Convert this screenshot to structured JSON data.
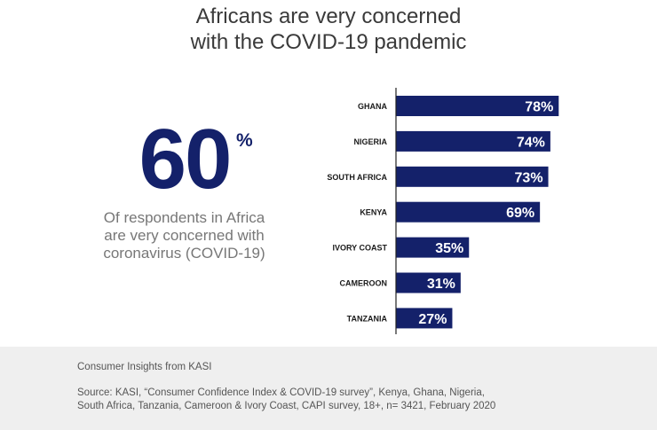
{
  "title": {
    "line1": "Africans are very concerned",
    "line2": "with the COVID-19 pandemic"
  },
  "headline_stat": {
    "value": "60",
    "unit": "%",
    "description_lines": [
      "Of respondents in Africa",
      "are very concerned with",
      "coronavirus (COVID-19)"
    ]
  },
  "colors": {
    "bar": "#14216a",
    "bar_label": "#ffffff",
    "category_label": "#1a1a1a",
    "axis": "#222222"
  },
  "chart_data": {
    "type": "bar",
    "orientation": "horizontal",
    "title": "",
    "xlabel": "",
    "ylabel": "",
    "categories": [
      "GHANA",
      "NIGERIA",
      "SOUTH AFRICA",
      "KENYA",
      "IVORY COAST",
      "CAMEROON",
      "TANZANIA"
    ],
    "values": [
      78,
      74,
      73,
      69,
      35,
      31,
      27
    ],
    "value_labels": [
      "78%",
      "74%",
      "73%",
      "69%",
      "35%",
      "31%",
      "27%"
    ],
    "xlim": [
      0,
      100
    ],
    "grid": false,
    "legend": "none"
  },
  "footer": {
    "credit": "Consumer Insights from KASI",
    "source_lines": [
      "Source: KASI, “Consumer Confidence Index & COVID-19 survey”, Kenya, Ghana, Nigeria,",
      "South Africa, Tanzania, Cameroon & Ivory Coast, CAPI survey, 18+, n= 3421, February 2020"
    ]
  }
}
